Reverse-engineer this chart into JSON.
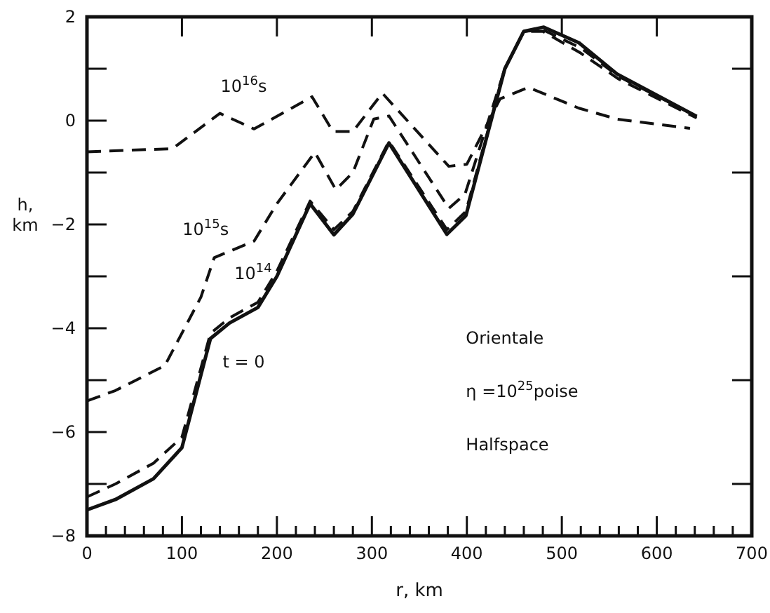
{
  "chart_data": {
    "type": "line",
    "xlabel": "r, km",
    "ylabel": "h, km",
    "xlim": [
      0,
      700
    ],
    "ylim": [
      -8,
      2
    ],
    "xticks": [
      0,
      {
        "value": 20,
        "label": null
      },
      {
        "value": 40,
        "label": null
      },
      {
        "value": 60,
        "label": null
      },
      {
        "value": 80,
        "label": null
      },
      100,
      {
        "value": 120,
        "label": null
      },
      {
        "value": 140,
        "label": null
      },
      {
        "value": 160,
        "label": null
      },
      {
        "value": 180,
        "label": null
      },
      200,
      {
        "value": 220,
        "label": null
      },
      {
        "value": 240,
        "label": null
      },
      {
        "value": 260,
        "label": null
      },
      {
        "value": 280,
        "label": null
      },
      300,
      {
        "value": 320,
        "label": null
      },
      {
        "value": 340,
        "label": null
      },
      {
        "value": 360,
        "label": null
      },
      {
        "value": 380,
        "label": null
      },
      400,
      {
        "value": 420,
        "label": null
      },
      {
        "value": 440,
        "label": null
      },
      {
        "value": 460,
        "label": null
      },
      {
        "value": 480,
        "label": null
      },
      500,
      {
        "value": 520,
        "label": null
      },
      {
        "value": 540,
        "label": null
      },
      {
        "value": 560,
        "label": null
      },
      {
        "value": 580,
        "label": null
      },
      600,
      {
        "value": 620,
        "label": null
      },
      {
        "value": 640,
        "label": null
      },
      {
        "value": 660,
        "label": null
      },
      {
        "value": 680,
        "label": null
      },
      700
    ],
    "yticks": [
      -8,
      {
        "value": -7,
        "label": null
      },
      -6,
      {
        "value": -5,
        "label": null
      },
      -4,
      {
        "value": -3,
        "label": null
      },
      -2,
      {
        "value": -1,
        "label": null
      },
      0,
      {
        "value": 1,
        "label": null
      },
      2
    ],
    "grid": false,
    "marker": "none",
    "series": [
      {
        "name": "10$^{16}$s",
        "color": "#111111",
        "line_style": "dashed",
        "x": [
          0,
          90,
          140,
          176,
          237,
          259,
          280,
          311,
          381,
          400,
          435,
          465,
          518,
          558,
          635
        ],
        "values": [
          -0.6,
          -0.54,
          0.14,
          -0.16,
          0.46,
          -0.21,
          -0.21,
          0.53,
          -0.88,
          -0.84,
          0.42,
          0.64,
          0.24,
          0.03,
          -0.15
        ]
      },
      {
        "name": "10$^{15}$s",
        "color": "#111111",
        "line_style": "dashed",
        "x": [
          0,
          30,
          82,
          120,
          134,
          176,
          200,
          240,
          262,
          280,
          302,
          318,
          381,
          398,
          440,
          460,
          480,
          520,
          560,
          642
        ],
        "values": [
          -5.4,
          -5.2,
          -4.72,
          -3.4,
          -2.64,
          -2.32,
          -1.6,
          -0.61,
          -1.33,
          -1.0,
          0.03,
          0.09,
          -1.69,
          -1.42,
          1.0,
          1.72,
          1.72,
          1.3,
          0.8,
          0.05
        ]
      },
      {
        "name": "10$^{14}$",
        "color": "#111111",
        "line_style": "dashed",
        "x": [
          0,
          30,
          70,
          100,
          130,
          150,
          180,
          200,
          235,
          260,
          280,
          318,
          379,
          399,
          440,
          460,
          480,
          520,
          560,
          642
        ],
        "values": [
          -7.25,
          -7.0,
          -6.6,
          -6.1,
          -4.1,
          -3.8,
          -3.5,
          -2.9,
          -1.55,
          -2.1,
          -1.75,
          -0.4,
          -2.1,
          -1.75,
          1.0,
          1.72,
          1.75,
          1.4,
          0.85,
          0.08
        ]
      },
      {
        "name": "t = 0",
        "color": "#111111",
        "line_style": "solid",
        "x": [
          0,
          30,
          70,
          100,
          130,
          150,
          180,
          200,
          235,
          260,
          280,
          318,
          379,
          399,
          440,
          460,
          481,
          518,
          558,
          642
        ],
        "values": [
          -7.5,
          -7.3,
          -6.9,
          -6.3,
          -4.2,
          -3.9,
          -3.6,
          -3.0,
          -1.6,
          -2.2,
          -1.8,
          -0.43,
          -2.19,
          -1.83,
          1.0,
          1.72,
          1.8,
          1.5,
          0.9,
          0.08
        ]
      }
    ],
    "annotations": [
      "Orientale",
      "η =10$^{25}$poise",
      "Halfspace"
    ]
  }
}
